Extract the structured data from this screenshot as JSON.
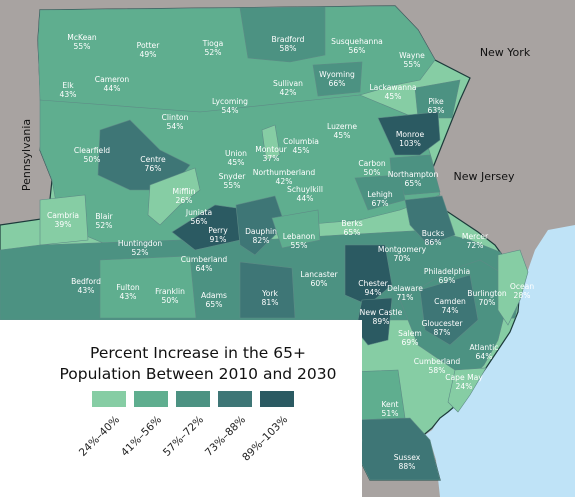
{
  "map": {
    "neighbor_labels": {
      "new_york": "New York",
      "new_jersey": "New Jersey",
      "pennsylvania": "Pennsylvania"
    },
    "colors": {
      "water": "#bfe3f7",
      "land_outside": "#a8a3a1",
      "boundary": "#1c3a3a",
      "county_border": "#5d8b86",
      "label_text": "#ffffff"
    },
    "counties": [
      {
        "name": "McKean",
        "value": "55%",
        "cls": 1
      },
      {
        "name": "Potter",
        "value": "49%",
        "cls": 1
      },
      {
        "name": "Tioga",
        "value": "52%",
        "cls": 1
      },
      {
        "name": "Bradford",
        "value": "58%",
        "cls": 2
      },
      {
        "name": "Susquehanna",
        "value": "56%",
        "cls": 1
      },
      {
        "name": "Wayne",
        "value": "55%",
        "cls": 1
      },
      {
        "name": "Elk",
        "value": "43%",
        "cls": 1
      },
      {
        "name": "Cameron",
        "value": "44%",
        "cls": 1
      },
      {
        "name": "Wyoming",
        "value": "66%",
        "cls": 2
      },
      {
        "name": "Lackawanna",
        "value": "45%",
        "cls": 1
      },
      {
        "name": "Pike",
        "value": "63%",
        "cls": 2
      },
      {
        "name": "Sullivan",
        "value": "42%",
        "cls": 1
      },
      {
        "name": "Lycoming",
        "value": "54%",
        "cls": 1
      },
      {
        "name": "Clinton",
        "value": "54%",
        "cls": 1
      },
      {
        "name": "Luzerne",
        "value": "45%",
        "cls": 1
      },
      {
        "name": "Monroe",
        "value": "103%",
        "cls": 4
      },
      {
        "name": "Clearfield",
        "value": "50%",
        "cls": 1
      },
      {
        "name": "Centre",
        "value": "76%",
        "cls": 3
      },
      {
        "name": "Union",
        "value": "45%",
        "cls": 1
      },
      {
        "name": "Montour",
        "value": "37%",
        "cls": 0
      },
      {
        "name": "Columbia",
        "value": "45%",
        "cls": 1
      },
      {
        "name": "Carbon",
        "value": "50%",
        "cls": 1
      },
      {
        "name": "Northampton",
        "value": "65%",
        "cls": 2
      },
      {
        "name": "Northumberland",
        "value": "42%",
        "cls": 1
      },
      {
        "name": "Snyder",
        "value": "55%",
        "cls": 1
      },
      {
        "name": "Mifflin",
        "value": "26%",
        "cls": 0
      },
      {
        "name": "Schuylkill",
        "value": "44%",
        "cls": 1
      },
      {
        "name": "Lehigh",
        "value": "67%",
        "cls": 2
      },
      {
        "name": "Juniata",
        "value": "56%",
        "cls": 1
      },
      {
        "name": "Cambria",
        "value": "39%",
        "cls": 0
      },
      {
        "name": "Blair",
        "value": "52%",
        "cls": 1
      },
      {
        "name": "Perry",
        "value": "91%",
        "cls": 4
      },
      {
        "name": "Dauphin",
        "value": "82%",
        "cls": 3
      },
      {
        "name": "Lebanon",
        "value": "55%",
        "cls": 1
      },
      {
        "name": "Berks",
        "value": "65%",
        "cls": 2
      },
      {
        "name": "Bucks",
        "value": "86%",
        "cls": 3
      },
      {
        "name": "Mercer",
        "value": "72%",
        "cls": 2
      },
      {
        "name": "Huntingdon",
        "value": "52%",
        "cls": 1
      },
      {
        "name": "Montgomery",
        "value": "70%",
        "cls": 2
      },
      {
        "name": "Cumberland",
        "value": "64%",
        "cls": 2
      },
      {
        "name": "Philadelphia",
        "value": "69%",
        "cls": 2
      },
      {
        "name": "Bedford",
        "value": "43%",
        "cls": 1
      },
      {
        "name": "Fulton",
        "value": "43%",
        "cls": 1
      },
      {
        "name": "Franklin",
        "value": "50%",
        "cls": 1
      },
      {
        "name": "Lancaster",
        "value": "60%",
        "cls": 2
      },
      {
        "name": "Chester",
        "value": "94%",
        "cls": 4
      },
      {
        "name": "Delaware",
        "value": "71%",
        "cls": 2
      },
      {
        "name": "Burlington",
        "value": "70%",
        "cls": 2
      },
      {
        "name": "Ocean",
        "value": "28%",
        "cls": 0
      },
      {
        "name": "Adams",
        "value": "65%",
        "cls": 2
      },
      {
        "name": "York",
        "value": "81%",
        "cls": 3
      },
      {
        "name": "Camden",
        "value": "74%",
        "cls": 3
      },
      {
        "name": "New Castle",
        "value": "89%",
        "cls": 4
      },
      {
        "name": "Gloucester",
        "value": "87%",
        "cls": 3
      },
      {
        "name": "Salem",
        "value": "69%",
        "cls": 2
      },
      {
        "name": "Atlantic",
        "value": "64%",
        "cls": 2
      },
      {
        "name": "Cumberland",
        "value": "58%",
        "cls": 2
      },
      {
        "name": "Cape May",
        "value": "24%",
        "cls": 0
      },
      {
        "name": "Kent",
        "value": "51%",
        "cls": 1
      },
      {
        "name": "Sussex",
        "value": "88%",
        "cls": 3
      }
    ]
  },
  "legend": {
    "title_line1": "Percent Increase in the 65+",
    "title_line2": "Population Between 2010 and 2030",
    "bins": [
      {
        "label": "24%–40%",
        "color": "#86cda4"
      },
      {
        "label": "41%–56%",
        "color": "#5fae8f"
      },
      {
        "label": "57%–72%",
        "color": "#4c9282"
      },
      {
        "label": "73%–88%",
        "color": "#3e7676"
      },
      {
        "label": "89%–103%",
        "color": "#2b5a62"
      }
    ]
  }
}
